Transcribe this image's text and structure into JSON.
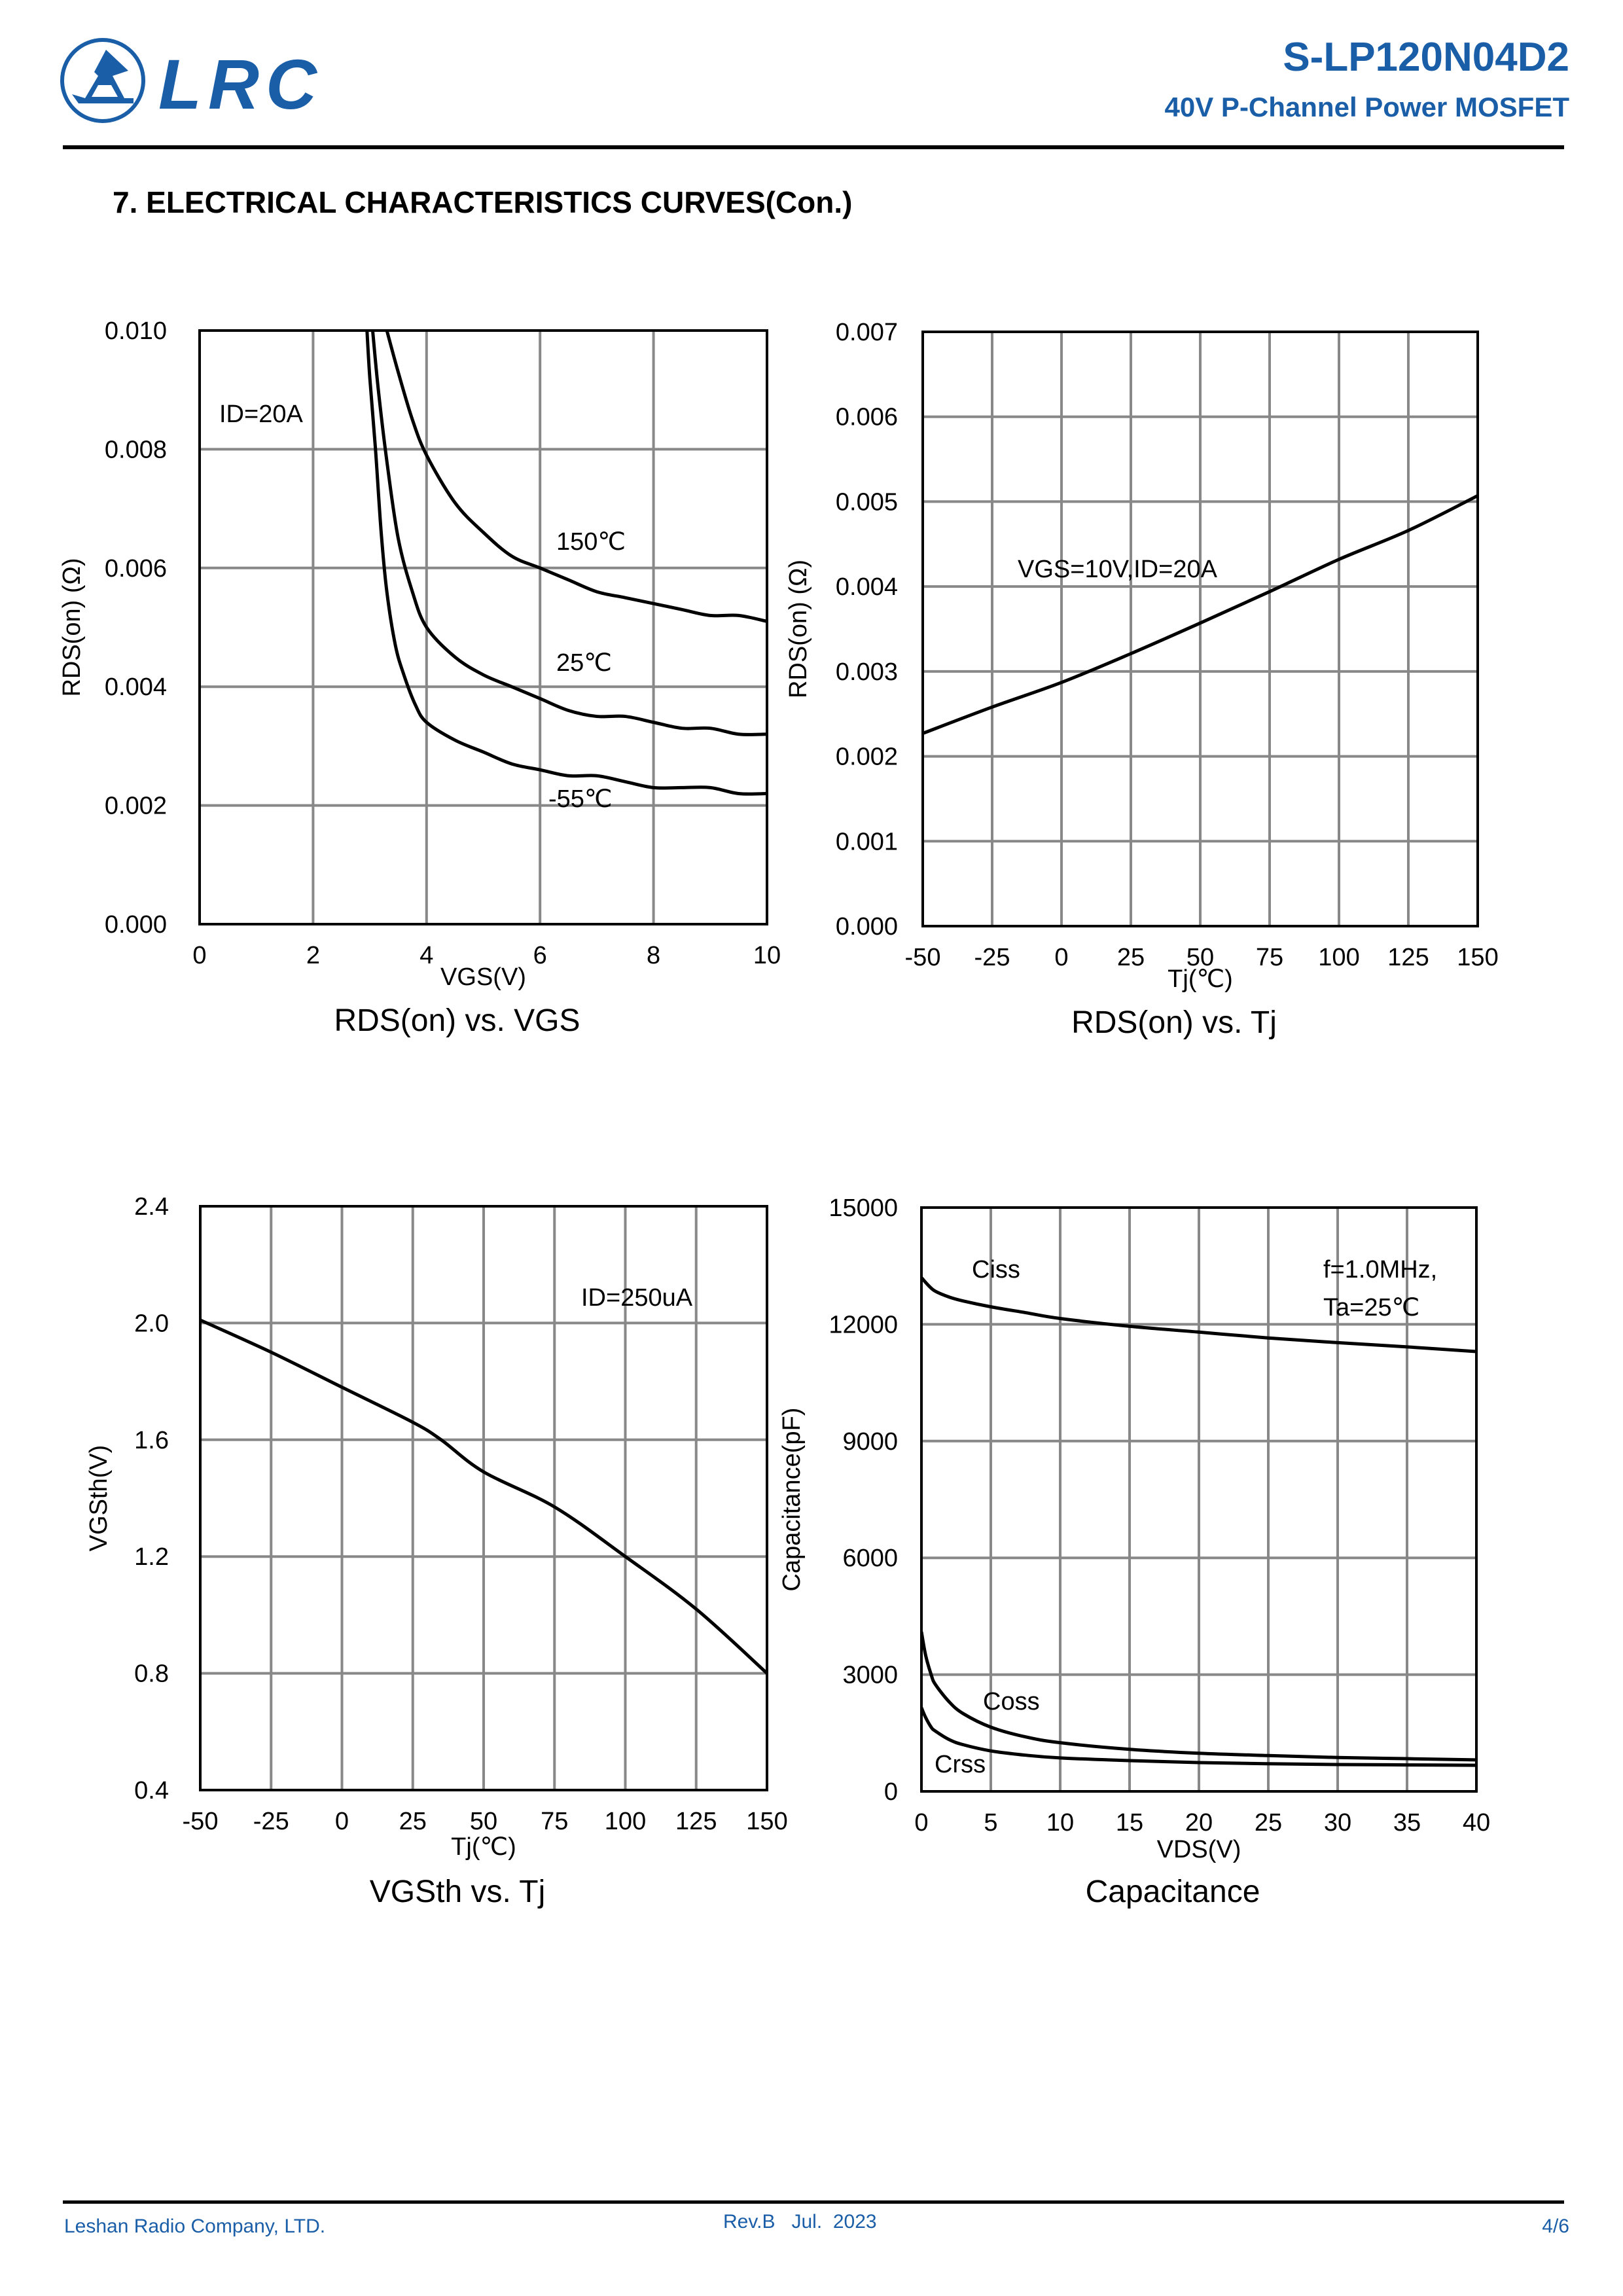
{
  "header": {
    "logo_text": "LRC",
    "part_number": "S-LP120N04D2",
    "subtitle": "40V P-Channel Power MOSFET"
  },
  "section_title": "7. ELECTRICAL CHARACTERISTICS CURVES(Con.)",
  "colors": {
    "brand": "#1a5ea8",
    "grid": "#888888",
    "curve": "#000000"
  },
  "chart_data": [
    {
      "type": "line",
      "title": "RDS(on) vs. VGS",
      "xlabel": "VGS(V)",
      "ylabel": "RDS(on) (Ω)",
      "xlim": [
        0,
        10
      ],
      "ylim": [
        0,
        0.01
      ],
      "xticks": [
        "0",
        "2",
        "4",
        "6",
        "8",
        "10"
      ],
      "yticks": [
        "0.000",
        "0.002",
        "0.004",
        "0.006",
        "0.008",
        "0.010"
      ],
      "grid": true,
      "annotations": [
        {
          "text": "ID=20A"
        }
      ],
      "series": [
        {
          "name": "150℃",
          "x": [
            3.3,
            3.5,
            3.75,
            4.0,
            4.5,
            5.0,
            5.5,
            6.0,
            6.5,
            7.0,
            7.5,
            8.0,
            8.5,
            9.0,
            9.5,
            10.0
          ],
          "y": [
            0.01,
            0.0093,
            0.0085,
            0.0079,
            0.0071,
            0.0066,
            0.0062,
            0.006,
            0.0058,
            0.0056,
            0.0055,
            0.0054,
            0.0053,
            0.0052,
            0.0052,
            0.0051
          ]
        },
        {
          "name": "25℃",
          "x": [
            3.05,
            3.15,
            3.3,
            3.5,
            3.75,
            4.0,
            4.5,
            5.0,
            5.5,
            6.0,
            6.5,
            7.0,
            7.5,
            8.0,
            8.5,
            9.0,
            9.5,
            10.0
          ],
          "y": [
            0.01,
            0.009,
            0.0078,
            0.0065,
            0.0056,
            0.005,
            0.0045,
            0.0042,
            0.004,
            0.0038,
            0.0036,
            0.0035,
            0.0035,
            0.0034,
            0.0033,
            0.0033,
            0.0032,
            0.0032
          ]
        },
        {
          "name": "-55℃",
          "x": [
            2.95,
            3.0,
            3.1,
            3.2,
            3.3,
            3.45,
            3.6,
            3.8,
            4.0,
            4.5,
            5.0,
            5.5,
            6.0,
            6.5,
            7.0,
            7.5,
            8.0,
            8.5,
            9.0,
            9.5,
            10.0
          ],
          "y": [
            0.01,
            0.0092,
            0.008,
            0.0066,
            0.0056,
            0.0047,
            0.0042,
            0.0037,
            0.0034,
            0.0031,
            0.0029,
            0.0027,
            0.0026,
            0.0025,
            0.0025,
            0.0024,
            0.0023,
            0.0023,
            0.0023,
            0.0022,
            0.0022
          ]
        }
      ],
      "curve_labels": [
        "150℃",
        "25℃",
        "-55℃"
      ]
    },
    {
      "type": "line",
      "title": "RDS(on) vs. Tj",
      "xlabel": "Tj(℃)",
      "ylabel": "RDS(on) (Ω)",
      "xlim": [
        -50,
        150
      ],
      "ylim": [
        0,
        0.007
      ],
      "xticks": [
        "-50",
        "-25",
        "0",
        "25",
        "50",
        "75",
        "100",
        "125",
        "150"
      ],
      "yticks": [
        "0.000",
        "0.001",
        "0.002",
        "0.003",
        "0.004",
        "0.005",
        "0.006",
        "0.007"
      ],
      "grid": true,
      "annotations": [
        {
          "text": "VGS=10V,ID=20A"
        }
      ],
      "series": [
        {
          "name": "RDS(on)",
          "x": [
            -50,
            -25,
            0,
            25,
            50,
            75,
            100,
            125,
            150
          ],
          "y": [
            0.00227,
            0.00258,
            0.00287,
            0.00321,
            0.00357,
            0.00394,
            0.00432,
            0.00466,
            0.00507
          ]
        }
      ]
    },
    {
      "type": "line",
      "title": "VGSth vs. Tj",
      "xlabel": "Tj(℃)",
      "ylabel": "VGSth(V)",
      "xlim": [
        -50,
        150
      ],
      "ylim": [
        0.4,
        2.4
      ],
      "xticks": [
        "-50",
        "-25",
        "0",
        "25",
        "50",
        "75",
        "100",
        "125",
        "150"
      ],
      "yticks": [
        "0.4",
        "0.8",
        "1.2",
        "1.6",
        "2.0",
        "2.4"
      ],
      "grid": true,
      "annotations": [
        {
          "text": "ID=250uA"
        }
      ],
      "series": [
        {
          "name": "VGSth",
          "x": [
            -50,
            -25,
            0,
            25,
            35,
            50,
            75,
            100,
            125,
            150
          ],
          "y": [
            2.01,
            1.9,
            1.78,
            1.66,
            1.6,
            1.49,
            1.37,
            1.2,
            1.02,
            0.8
          ]
        }
      ]
    },
    {
      "type": "line",
      "title": "Capacitance",
      "xlabel": "VDS(V)",
      "ylabel": "Capacitance(pF)",
      "xlim": [
        0,
        40
      ],
      "ylim": [
        0,
        15000
      ],
      "xticks": [
        "0",
        "5",
        "10",
        "15",
        "20",
        "25",
        "30",
        "35",
        "40"
      ],
      "yticks": [
        "0",
        "3000",
        "6000",
        "9000",
        "12000",
        "15000"
      ],
      "grid": true,
      "annotations": [
        {
          "text": "f=1.0MHz,"
        },
        {
          "text": "Ta=25℃"
        }
      ],
      "series": [
        {
          "name": "Ciss",
          "x": [
            0,
            0.5,
            1,
            2,
            3,
            5,
            7.5,
            10,
            15,
            20,
            25,
            30,
            35,
            40
          ],
          "y": [
            13200,
            13000,
            12850,
            12700,
            12600,
            12450,
            12300,
            12150,
            11950,
            11800,
            11650,
            11530,
            11420,
            11300
          ]
        },
        {
          "name": "Coss",
          "x": [
            0,
            0.3,
            0.7,
            1,
            2,
            3,
            5,
            7.5,
            10,
            15,
            20,
            25,
            30,
            35,
            40
          ],
          "y": [
            4100,
            3500,
            3000,
            2750,
            2300,
            2000,
            1650,
            1400,
            1250,
            1080,
            980,
            920,
            870,
            840,
            810
          ]
        },
        {
          "name": "Crss",
          "x": [
            0,
            0.3,
            0.7,
            1,
            2,
            3,
            5,
            7.5,
            10,
            15,
            20,
            25,
            30,
            35,
            40
          ],
          "y": [
            2150,
            1900,
            1650,
            1550,
            1330,
            1200,
            1040,
            930,
            860,
            790,
            740,
            710,
            690,
            680,
            670
          ]
        }
      ],
      "curve_labels": [
        "Ciss",
        "Coss",
        "Crss"
      ]
    }
  ],
  "footer": {
    "company": "Leshan Radio Company, LTD.",
    "revision": "Rev.B   Jul.  2023",
    "page": "4/6"
  }
}
